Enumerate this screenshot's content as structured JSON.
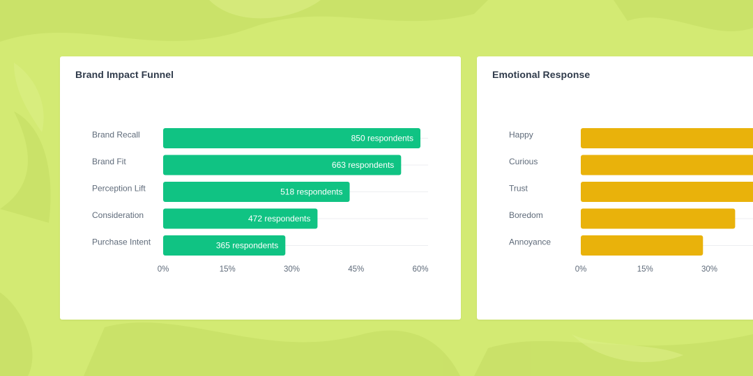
{
  "charts": [
    {
      "id": "funnel",
      "title": "Brand Impact Funnel",
      "color": "#10c383",
      "chart_data": {
        "type": "bar",
        "orientation": "horizontal",
        "title": "Brand Impact Funnel",
        "xlabel": "",
        "ylabel": "",
        "categories": [
          "Brand Recall",
          "Brand Fit",
          "Perception Lift",
          "Consideration",
          "Purchase Intent"
        ],
        "values": [
          60,
          55.5,
          43.5,
          36,
          28.5
        ],
        "data_labels": [
          "850 respondents",
          "663 respondents",
          "518 respondents",
          "472 respondents",
          "365 respondents"
        ],
        "xlim": [
          0,
          60
        ],
        "ticks": [
          0,
          15,
          30,
          45,
          60
        ],
        "tick_labels": [
          "0%",
          "15%",
          "30%",
          "45%",
          "60%"
        ],
        "grid": true,
        "legend": "none"
      }
    },
    {
      "id": "emotion",
      "title": "Emotional Response",
      "color": "#e9b20b",
      "chart_data": {
        "type": "bar",
        "orientation": "horizontal",
        "title": "Emotional Response",
        "xlabel": "",
        "ylabel": "",
        "categories": [
          "Happy",
          "Curious",
          "Trust",
          "Boredom",
          "Annoyance"
        ],
        "values": [
          60,
          55,
          50,
          36,
          28.5
        ],
        "xlim": [
          0,
          60
        ],
        "ticks": [
          0,
          15,
          30
        ],
        "tick_labels": [
          "0%",
          "15%",
          "30%"
        ],
        "grid": true,
        "legend": "none"
      }
    }
  ]
}
